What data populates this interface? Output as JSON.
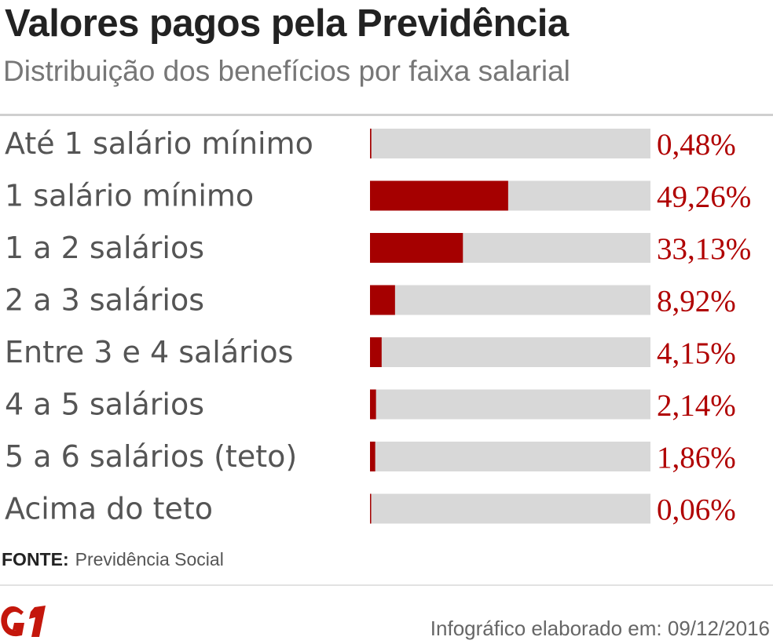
{
  "header": {
    "title": "Valores pagos pela Previdência",
    "subtitle": "Distribuição dos benefícios por faixa salarial"
  },
  "footer": {
    "source_label": "FONTE:",
    "source_value": "Previdência Social",
    "logo_text": "G1",
    "credit": "Infográfico elaborado em: 09/12/2016"
  },
  "colors": {
    "bar_fill": "#a50000",
    "bar_track": "#d8d8d8",
    "label_text": "#555555",
    "value_text": "#b00000",
    "logo": "#c4170c"
  },
  "chart_data": {
    "type": "bar",
    "orientation": "horizontal",
    "categories": [
      "Até 1 salário mínimo",
      "1 salário mínimo",
      "1 a 2 salários",
      "2 a 3 salários",
      "Entre 3 e 4 salários",
      "4 a 5 salários",
      "5 a 6 salários (teto)",
      "Acima do teto"
    ],
    "values": [
      0.48,
      49.26,
      33.13,
      8.92,
      4.15,
      2.14,
      1.86,
      0.06
    ],
    "value_labels": [
      "0,48%",
      "49,26%",
      "33,13%",
      "8,92%",
      "4,15%",
      "2,14%",
      "1,86%",
      "0,06%"
    ],
    "xlim": [
      0,
      100
    ],
    "grid": false,
    "legend": "none"
  }
}
